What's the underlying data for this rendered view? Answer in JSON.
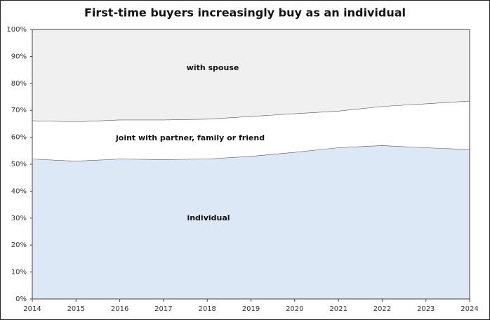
{
  "chart_data": {
    "type": "stacked-area",
    "title": "First-time buyers increasingly buy as an individual",
    "x": [
      2014,
      2015,
      2016,
      2017,
      2018,
      2019,
      2020,
      2021,
      2022,
      2023,
      2024
    ],
    "series": [
      {
        "name": "individual",
        "color": "#dce8f5",
        "values": [
          52,
          51.2,
          52,
          51.8,
          52,
          53,
          54.5,
          56.2,
          57,
          56.2,
          55.5
        ]
      },
      {
        "name": "joint with partner, family or friend",
        "color": "#ffffff",
        "values": [
          14.2,
          14.6,
          14.5,
          14.7,
          14.8,
          14.8,
          14.3,
          13.6,
          14.5,
          16.3,
          18
        ]
      },
      {
        "name": "with spouse",
        "color": "#f0f0f0",
        "values": [
          33.8,
          34.2,
          33.5,
          33.5,
          33.2,
          32.2,
          31.2,
          30.2,
          28.5,
          27.5,
          26.5
        ]
      }
    ],
    "xlim": [
      2014,
      2024
    ],
    "xticks": [
      2014,
      2015,
      2016,
      2017,
      2018,
      2019,
      2020,
      2021,
      2022,
      2023,
      2024
    ],
    "ylim": [
      0,
      100
    ],
    "yticks": [
      {
        "value": 0,
        "label": "0%"
      },
      {
        "value": 10,
        "label": "10%"
      },
      {
        "value": 20,
        "label": "20%"
      },
      {
        "value": 30,
        "label": "30%"
      },
      {
        "value": 40,
        "label": "40%"
      },
      {
        "value": 50,
        "label": "50%"
      },
      {
        "value": 60,
        "label": "60%"
      },
      {
        "value": 70,
        "label": "70%"
      },
      {
        "value": 80,
        "label": "80%"
      },
      {
        "value": 90,
        "label": "90%"
      },
      {
        "value": 100,
        "label": "100%"
      }
    ]
  }
}
